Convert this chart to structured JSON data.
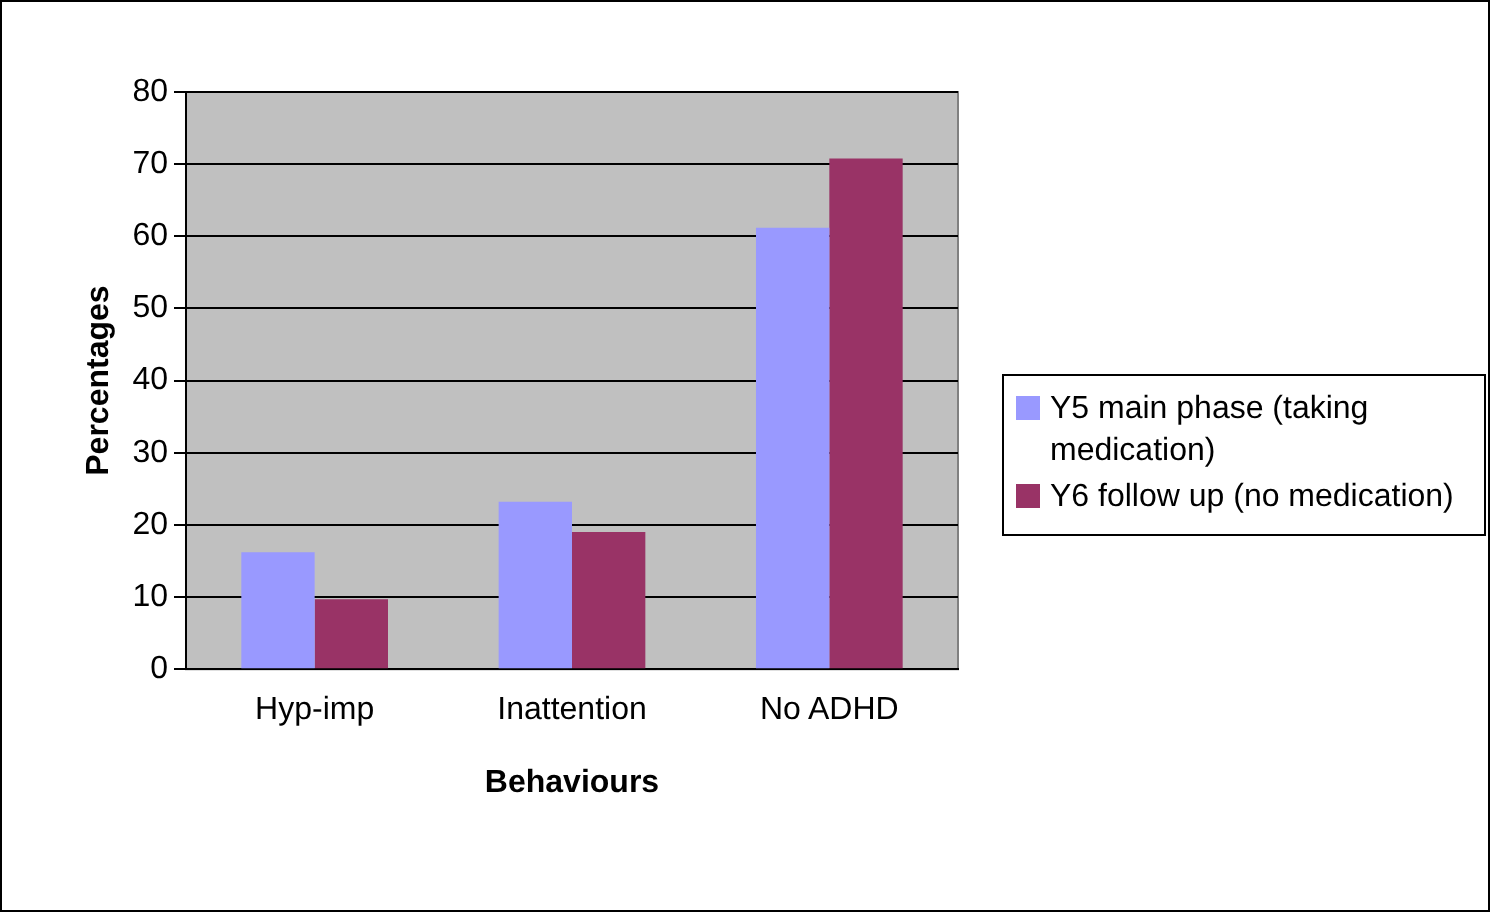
{
  "chart_data": {
    "type": "bar",
    "xlabel": "Behaviours",
    "ylabel": "Percentages",
    "categories": [
      "Hyp-imp",
      "Inattention",
      "No ADHD"
    ],
    "series": [
      {
        "name": "Y5 main phase (taking medication)",
        "color": "#9999ff",
        "values": [
          16.2,
          23.2,
          61.2
        ]
      },
      {
        "name": "Y6 follow up (no medication)",
        "color": "#993366",
        "values": [
          9.7,
          19,
          70.8
        ]
      }
    ],
    "ylim": [
      0,
      80
    ],
    "yticks": [
      0,
      10,
      20,
      30,
      40,
      50,
      60,
      70,
      80
    ],
    "grid": "y",
    "legend": "right"
  }
}
